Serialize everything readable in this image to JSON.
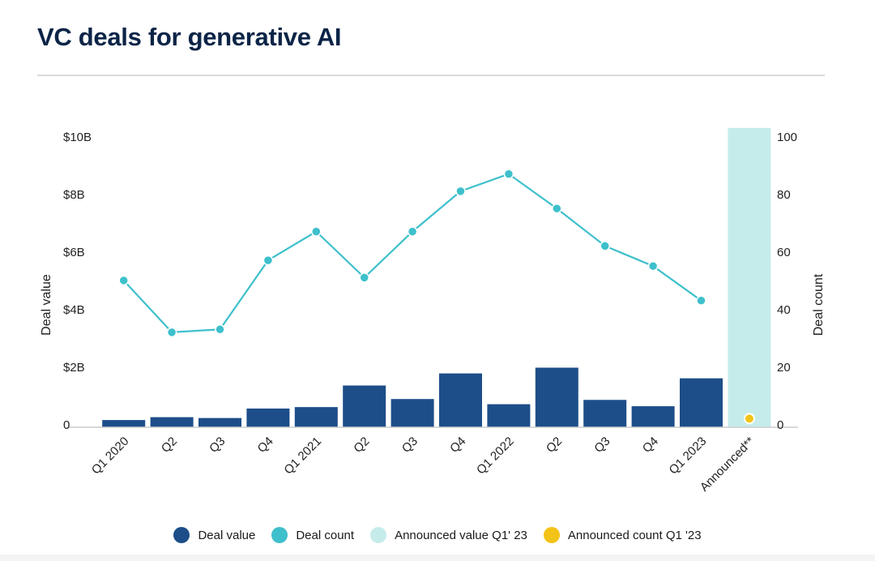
{
  "title": "VC deals for generative AI",
  "colors": {
    "deal_value": "#1d4e89",
    "deal_count": "#3ec0cc",
    "announced_value": "#c5eceb",
    "announced_count": "#f3c317",
    "axis": "#cccccc",
    "title": "#0b2447"
  },
  "chart_data": {
    "type": "bar",
    "categories": [
      "Q1 2020",
      "Q2",
      "Q3",
      "Q4",
      "Q1 2021",
      "Q2",
      "Q3",
      "Q4",
      "Q1 2022",
      "Q2",
      "Q3",
      "Q4",
      "Q1 2023",
      "Announced**"
    ],
    "series": [
      {
        "name": "Deal value",
        "type": "bar",
        "axis": "left",
        "values": [
          0.25,
          0.35,
          0.32,
          0.65,
          0.7,
          1.45,
          0.98,
          1.87,
          0.8,
          2.07,
          0.95,
          0.73,
          1.7,
          null
        ]
      },
      {
        "name": "Deal count",
        "type": "line",
        "axis": "right",
        "values": [
          51,
          33,
          34,
          58,
          68,
          52,
          68,
          82,
          88,
          76,
          63,
          56,
          44,
          null
        ]
      },
      {
        "name": "Announced value Q1' 23",
        "type": "bar",
        "axis": "left",
        "values": [
          null,
          null,
          null,
          null,
          null,
          null,
          null,
          null,
          null,
          null,
          null,
          null,
          null,
          10.4
        ]
      },
      {
        "name": "Announced count Q1 '23",
        "type": "scatter",
        "axis": "right",
        "values": [
          null,
          null,
          null,
          null,
          null,
          null,
          null,
          null,
          null,
          null,
          null,
          null,
          null,
          3
        ]
      }
    ],
    "y_left": {
      "label": "Deal value",
      "range": [
        0,
        10
      ],
      "ticks": [
        0,
        2,
        4,
        6,
        8,
        10
      ],
      "tick_labels": [
        "0",
        "$2B",
        "$4B",
        "$6B",
        "$8B",
        "$10B"
      ]
    },
    "y_right": {
      "label": "Deal count",
      "range": [
        0,
        100
      ],
      "ticks": [
        0,
        20,
        40,
        60,
        80,
        100
      ],
      "tick_labels": [
        "0",
        "20",
        "40",
        "60",
        "80",
        "100"
      ]
    },
    "grid": false,
    "legend_position": "bottom-center",
    "legend": [
      "Deal value",
      "Deal count",
      "Announced value Q1' 23",
      "Announced count Q1 '23"
    ]
  }
}
